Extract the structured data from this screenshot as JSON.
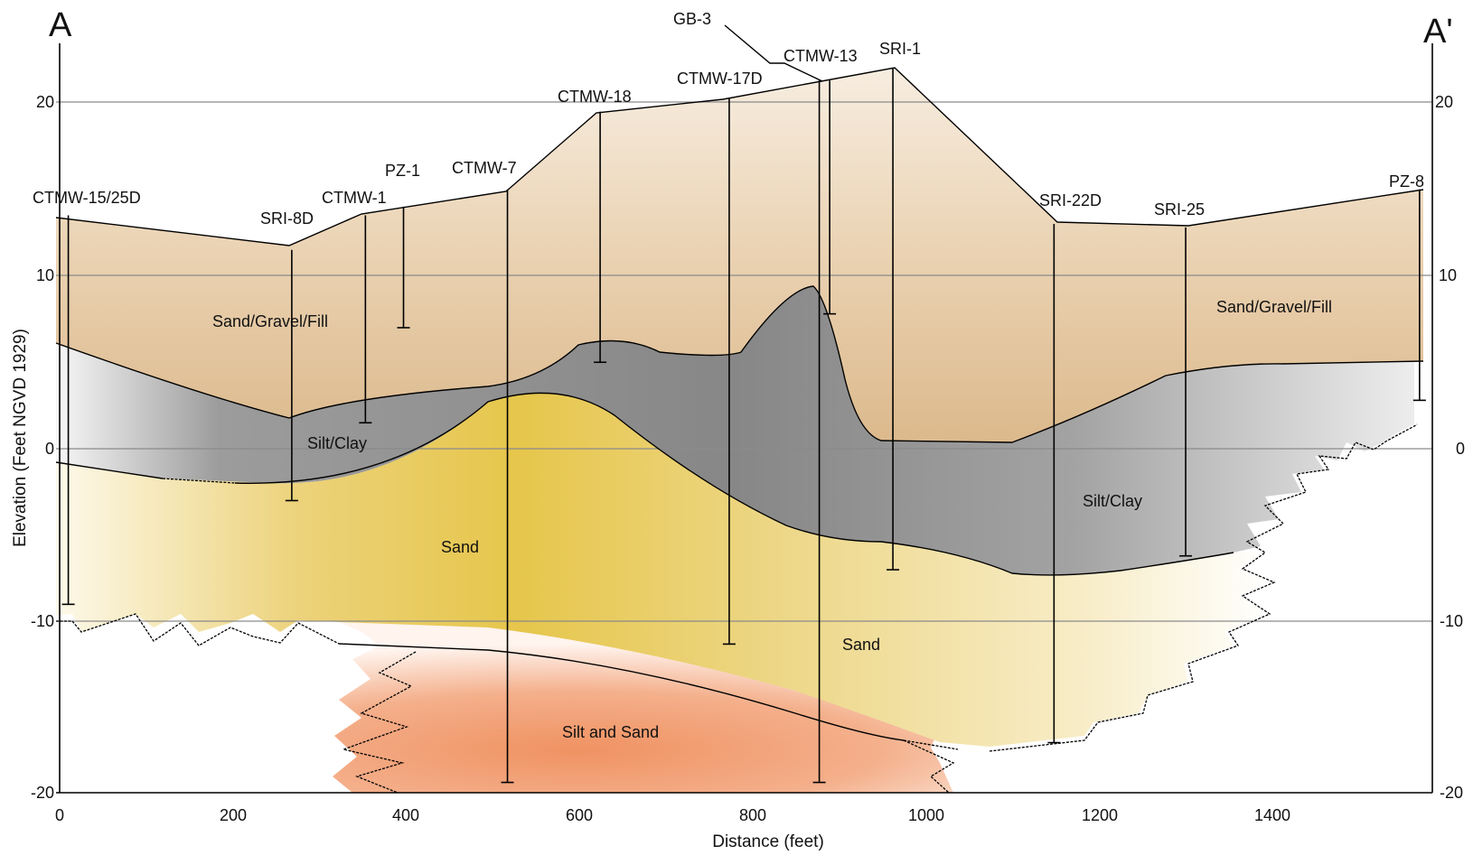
{
  "corners": {
    "left": "A",
    "right": "A'"
  },
  "axes": {
    "x_title": "Distance (feet)",
    "y_title": "Elevation (Feet NGVD 1929)",
    "x_ticks": [
      "0",
      "200",
      "400",
      "600",
      "800",
      "1000",
      "1200",
      "1400"
    ],
    "y_ticks_left": [
      "20",
      "10",
      "0",
      "-10",
      "-20"
    ],
    "y_ticks_right": [
      "20",
      "10",
      "0",
      "-10",
      "-20"
    ]
  },
  "units": [
    {
      "id": "fill-left",
      "text": "Sand/Gravel/Fill"
    },
    {
      "id": "fill-right",
      "text": "Sand/Gravel/Fill"
    },
    {
      "id": "silt-left",
      "text": "Silt/Clay"
    },
    {
      "id": "silt-right",
      "text": "Silt/Clay"
    },
    {
      "id": "sand-left",
      "text": "Sand"
    },
    {
      "id": "sand-right",
      "text": "Sand"
    },
    {
      "id": "silt-sand",
      "text": "Silt and Sand"
    }
  ],
  "wells": [
    {
      "name": "CTMW-15/25D",
      "distance_ft": 10,
      "top_ft": 13.5,
      "bottom_ft": -9
    },
    {
      "name": "SRI-8D",
      "distance_ft": 268,
      "top_ft": 11.5,
      "bottom_ft": -3
    },
    {
      "name": "CTMW-1",
      "distance_ft": 353,
      "top_ft": 13.5,
      "bottom_ft": 1.5
    },
    {
      "name": "PZ-1",
      "distance_ft": 397,
      "top_ft": 14,
      "bottom_ft": 7
    },
    {
      "name": "CTMW-7",
      "distance_ft": 517,
      "top_ft": 15,
      "bottom_ft": -19.3
    },
    {
      "name": "CTMW-18",
      "distance_ft": 624,
      "top_ft": 19.5,
      "bottom_ft": 5
    },
    {
      "name": "CTMW-17D",
      "distance_ft": 773,
      "top_ft": 20.3,
      "bottom_ft": -11.3
    },
    {
      "name": "CTMW-13",
      "distance_ft": 877,
      "top_ft": 21.3,
      "bottom_ft": -19.3
    },
    {
      "name": "GB-3",
      "distance_ft": 889,
      "top_ft": 21.3,
      "bottom_ft": 7.8
    },
    {
      "name": "SRI-1",
      "distance_ft": 962,
      "top_ft": 22,
      "bottom_ft": -7
    },
    {
      "name": "SRI-22D",
      "distance_ft": 1148,
      "top_ft": 13,
      "bottom_ft": -17
    },
    {
      "name": "SRI-25",
      "distance_ft": 1300,
      "top_ft": 12.8,
      "bottom_ft": -6.2
    },
    {
      "name": "PZ-8",
      "distance_ft": 1570,
      "top_ft": 15,
      "bottom_ft": 2.8
    }
  ]
}
